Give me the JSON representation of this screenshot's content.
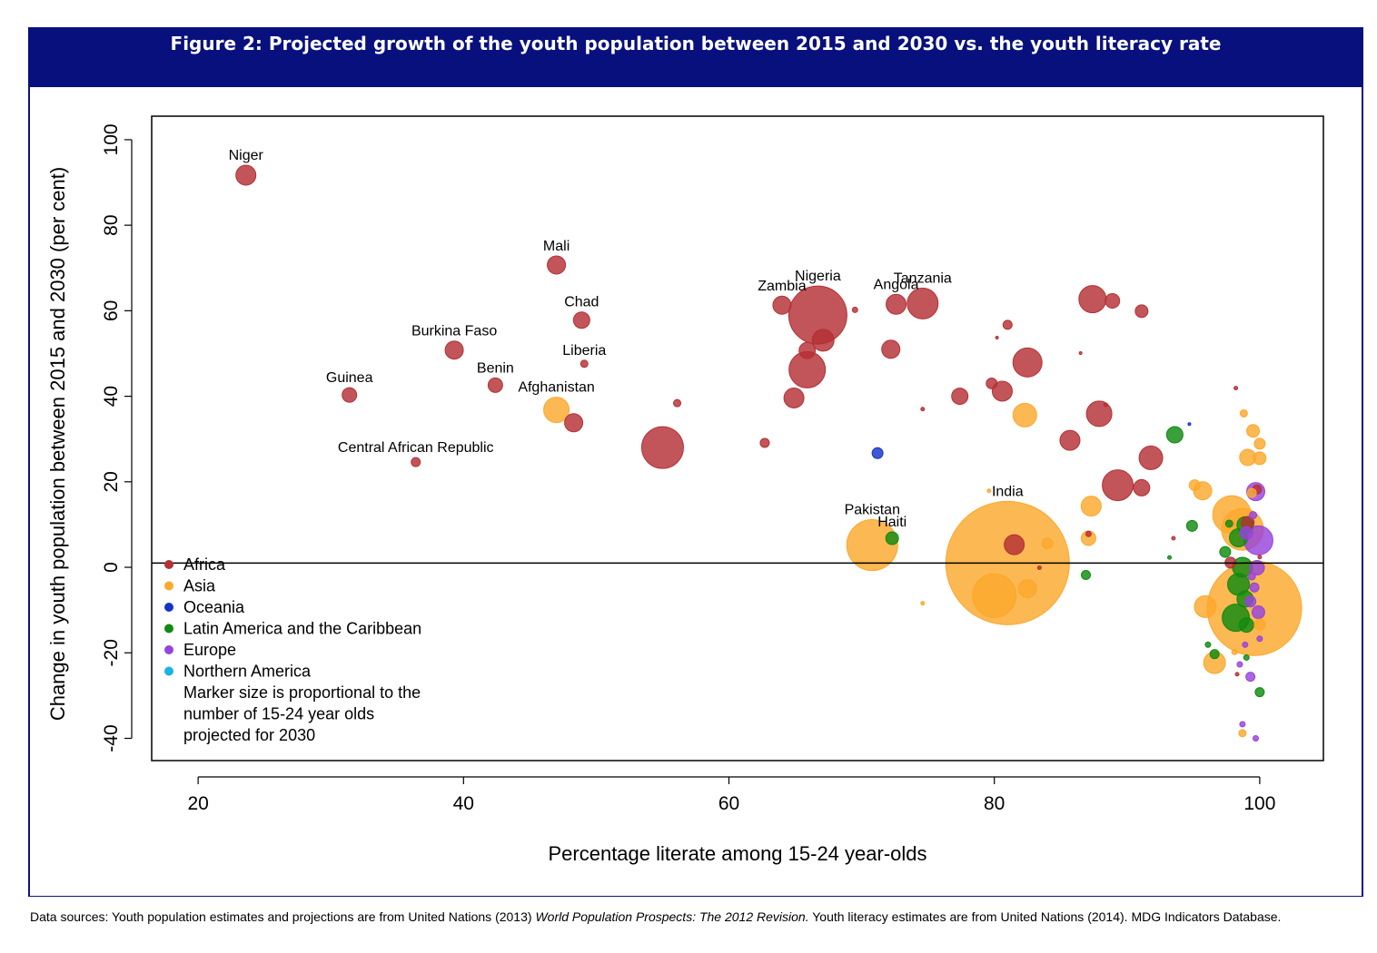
{
  "figure": {
    "title": "Figure 2: Projected growth of the youth population between 2015 and 2030 vs. the youth literacy rate"
  },
  "sources": {
    "prefix": "Data sources: Youth population estimates and projections are from United Nations (2013) ",
    "title_italic": "World Population Prospects: The 2012 Revision.",
    "suffix": " Youth literacy estimates are from United Nations (2014). MDG Indicators Database."
  },
  "colors": {
    "Africa": "#b53034",
    "Asia": "#fba82c",
    "Oceania": "#1533c9",
    "Latin America and the Caribbean": "#108a10",
    "Europe": "#9743dc",
    "Northern America": "#18b4e8"
  },
  "chart_data": {
    "type": "scatter",
    "xlabel": "Percentage literate among 15-24 year-olds",
    "ylabel": "Change in youth population between 2015 and 2030 (per cent)",
    "xlim": [
      16.5,
      104.8
    ],
    "ylim": [
      -45.2,
      105.5
    ],
    "xticks": [
      20,
      40,
      60,
      80,
      100
    ],
    "yticks": [
      100,
      80,
      60,
      40,
      20,
      0,
      -20,
      -40
    ],
    "reference_line_y": 1,
    "grid": false,
    "legend": {
      "placement": "bottom-left",
      "entries": [
        "Africa",
        "Asia",
        "Oceania",
        "Latin America and the Caribbean",
        "Europe",
        "Northern America"
      ],
      "note": [
        "Marker size is proportional to the",
        "number of 15-24 year olds",
        "projected for 2030"
      ]
    },
    "series": [
      {
        "name": "Africa",
        "points": [
          {
            "x": 23.6,
            "y": 91.7,
            "r": 11,
            "label": "Niger"
          },
          {
            "x": 47.0,
            "y": 70.7,
            "r": 10,
            "label": "Mali"
          },
          {
            "x": 48.9,
            "y": 57.8,
            "r": 9,
            "label": "Chad"
          },
          {
            "x": 39.3,
            "y": 50.8,
            "r": 10,
            "label": "Burkina Faso"
          },
          {
            "x": 49.1,
            "y": 47.6,
            "r": 4,
            "label": "Liberia"
          },
          {
            "x": 42.4,
            "y": 42.6,
            "r": 8,
            "label": "Benin"
          },
          {
            "x": 31.4,
            "y": 40.3,
            "r": 8,
            "label": "Guinea"
          },
          {
            "x": 36.4,
            "y": 24.6,
            "r": 5,
            "label": "Central African Republic"
          },
          {
            "x": 48.3,
            "y": 33.8,
            "r": 10
          },
          {
            "x": 55.0,
            "y": 28.0,
            "r": 23
          },
          {
            "x": 56.1,
            "y": 38.4,
            "r": 4
          },
          {
            "x": 62.7,
            "y": 29.1,
            "r": 5
          },
          {
            "x": 64.0,
            "y": 61.3,
            "r": 10,
            "label": "Zambia"
          },
          {
            "x": 66.7,
            "y": 59.0,
            "r": 32,
            "label": "Nigeria"
          },
          {
            "x": 67.1,
            "y": 53.1,
            "r": 12
          },
          {
            "x": 65.9,
            "y": 50.7,
            "r": 9
          },
          {
            "x": 65.9,
            "y": 46.2,
            "r": 20
          },
          {
            "x": 64.9,
            "y": 39.6,
            "r": 11
          },
          {
            "x": 69.5,
            "y": 60.2,
            "r": 3
          },
          {
            "x": 72.6,
            "y": 61.5,
            "r": 11,
            "label": "Angola"
          },
          {
            "x": 74.6,
            "y": 61.7,
            "r": 17,
            "label": "Tanzania"
          },
          {
            "x": 72.2,
            "y": 51.0,
            "r": 10
          },
          {
            "x": 74.6,
            "y": 37.0,
            "r": 2
          },
          {
            "x": 77.4,
            "y": 40.0,
            "r": 9
          },
          {
            "x": 79.8,
            "y": 43.0,
            "r": 6
          },
          {
            "x": 80.6,
            "y": 41.2,
            "r": 11
          },
          {
            "x": 80.2,
            "y": 53.7,
            "r": 1.5
          },
          {
            "x": 81.0,
            "y": 56.7,
            "r": 5
          },
          {
            "x": 82.5,
            "y": 47.9,
            "r": 16
          },
          {
            "x": 81.5,
            "y": 5.3,
            "r": 11
          },
          {
            "x": 83.4,
            "y": -0.1,
            "r": 2
          },
          {
            "x": 85.7,
            "y": 29.7,
            "r": 11
          },
          {
            "x": 86.5,
            "y": 50.1,
            "r": 1.5
          },
          {
            "x": 87.9,
            "y": 35.9,
            "r": 14
          },
          {
            "x": 88.4,
            "y": 38.0,
            "r": 2
          },
          {
            "x": 87.1,
            "y": 7.8,
            "r": 3
          },
          {
            "x": 87.4,
            "y": 62.7,
            "r": 15
          },
          {
            "x": 88.9,
            "y": 62.3,
            "r": 8
          },
          {
            "x": 91.1,
            "y": 59.9,
            "r": 7
          },
          {
            "x": 89.3,
            "y": 19.2,
            "r": 17
          },
          {
            "x": 91.1,
            "y": 18.6,
            "r": 9
          },
          {
            "x": 91.8,
            "y": 25.6,
            "r": 13
          },
          {
            "x": 93.5,
            "y": 6.8,
            "r": 2
          },
          {
            "x": 98.2,
            "y": 41.9,
            "r": 2
          },
          {
            "x": 99.1,
            "y": 10.4,
            "r": 7
          },
          {
            "x": 97.8,
            "y": 1.1,
            "r": 6
          },
          {
            "x": 98.3,
            "y": -25.0,
            "r": 2
          },
          {
            "x": 99.8,
            "y": 18.2,
            "r": 5
          },
          {
            "x": 100.0,
            "y": 2.4,
            "r": 2
          }
        ]
      },
      {
        "name": "Asia",
        "points": [
          {
            "x": 47.0,
            "y": 36.8,
            "r": 14,
            "label": "Afghanistan"
          },
          {
            "x": 70.8,
            "y": 5.2,
            "r": 28,
            "label": "Pakistan"
          },
          {
            "x": 81.0,
            "y": 1.0,
            "r": 68,
            "label": "India"
          },
          {
            "x": 80.0,
            "y": -6.6,
            "r": 24
          },
          {
            "x": 82.5,
            "y": -5.0,
            "r": 10
          },
          {
            "x": 79.6,
            "y": 17.9,
            "r": 2
          },
          {
            "x": 82.3,
            "y": 35.6,
            "r": 13
          },
          {
            "x": 84.0,
            "y": 5.6,
            "r": 6
          },
          {
            "x": 74.6,
            "y": -8.4,
            "r": 2
          },
          {
            "x": 87.3,
            "y": 14.3,
            "r": 11
          },
          {
            "x": 87.1,
            "y": 6.8,
            "r": 8
          },
          {
            "x": 95.1,
            "y": 19.2,
            "r": 6
          },
          {
            "x": 95.7,
            "y": 17.9,
            "r": 10
          },
          {
            "x": 95.9,
            "y": -9.2,
            "r": 12
          },
          {
            "x": 96.6,
            "y": -22.3,
            "r": 12
          },
          {
            "x": 97.9,
            "y": 12.3,
            "r": 21
          },
          {
            "x": 98.7,
            "y": 8.9,
            "r": 23
          },
          {
            "x": 99.6,
            "y": -9.6,
            "r": 52
          },
          {
            "x": 98.8,
            "y": 36.0,
            "r": 4
          },
          {
            "x": 99.5,
            "y": 31.9,
            "r": 7
          },
          {
            "x": 99.1,
            "y": 25.7,
            "r": 9
          },
          {
            "x": 100.0,
            "y": 25.5,
            "r": 7
          },
          {
            "x": 100.0,
            "y": 28.9,
            "r": 6
          },
          {
            "x": 99.4,
            "y": 17.4,
            "r": 5
          },
          {
            "x": 98.7,
            "y": -38.8,
            "r": 4
          },
          {
            "x": 100.0,
            "y": -13.4,
            "r": 6
          },
          {
            "x": 98.1,
            "y": -19.8,
            "r": 3
          }
        ]
      },
      {
        "name": "Oceania",
        "points": [
          {
            "x": 71.2,
            "y": 26.7,
            "r": 6
          },
          {
            "x": 94.7,
            "y": 33.5,
            "r": 1.5
          }
        ]
      },
      {
        "name": "Latin America and the Caribbean",
        "points": [
          {
            "x": 72.3,
            "y": 6.8,
            "r": 7,
            "label": "Haiti"
          },
          {
            "x": 86.9,
            "y": -1.8,
            "r": 5
          },
          {
            "x": 93.6,
            "y": 31.0,
            "r": 9
          },
          {
            "x": 93.2,
            "y": 2.3,
            "r": 2
          },
          {
            "x": 94.9,
            "y": 9.7,
            "r": 6
          },
          {
            "x": 96.1,
            "y": -18.1,
            "r": 3
          },
          {
            "x": 96.6,
            "y": -20.3,
            "r": 5
          },
          {
            "x": 97.4,
            "y": 3.6,
            "r": 6
          },
          {
            "x": 97.7,
            "y": 10.2,
            "r": 4
          },
          {
            "x": 98.4,
            "y": 6.9,
            "r": 10
          },
          {
            "x": 98.9,
            "y": 9.9,
            "r": 9
          },
          {
            "x": 98.7,
            "y": 0.0,
            "r": 11
          },
          {
            "x": 98.4,
            "y": -4.0,
            "r": 12
          },
          {
            "x": 98.2,
            "y": -11.8,
            "r": 15
          },
          {
            "x": 99.0,
            "y": -13.5,
            "r": 8
          },
          {
            "x": 98.9,
            "y": -7.4,
            "r": 9
          },
          {
            "x": 99.0,
            "y": -21.1,
            "r": 3
          },
          {
            "x": 100.0,
            "y": -29.2,
            "r": 5
          }
        ]
      },
      {
        "name": "Europe",
        "points": [
          {
            "x": 99.9,
            "y": 6.3,
            "r": 16
          },
          {
            "x": 99.7,
            "y": 17.7,
            "r": 10
          },
          {
            "x": 99.0,
            "y": 8.0,
            "r": 7
          },
          {
            "x": 99.8,
            "y": -0.1,
            "r": 8
          },
          {
            "x": 99.9,
            "y": -10.5,
            "r": 7
          },
          {
            "x": 99.3,
            "y": -8.0,
            "r": 6
          },
          {
            "x": 99.6,
            "y": -4.7,
            "r": 5
          },
          {
            "x": 99.4,
            "y": -2.1,
            "r": 4
          },
          {
            "x": 100.0,
            "y": -16.7,
            "r": 3
          },
          {
            "x": 98.9,
            "y": -18.1,
            "r": 3
          },
          {
            "x": 98.5,
            "y": -22.7,
            "r": 3
          },
          {
            "x": 99.3,
            "y": -25.6,
            "r": 5
          },
          {
            "x": 98.7,
            "y": -36.7,
            "r": 3
          },
          {
            "x": 99.7,
            "y": -40.0,
            "r": 3
          },
          {
            "x": 99.5,
            "y": 12.2,
            "r": 4
          }
        ]
      },
      {
        "name": "Northern America",
        "points": []
      }
    ]
  }
}
